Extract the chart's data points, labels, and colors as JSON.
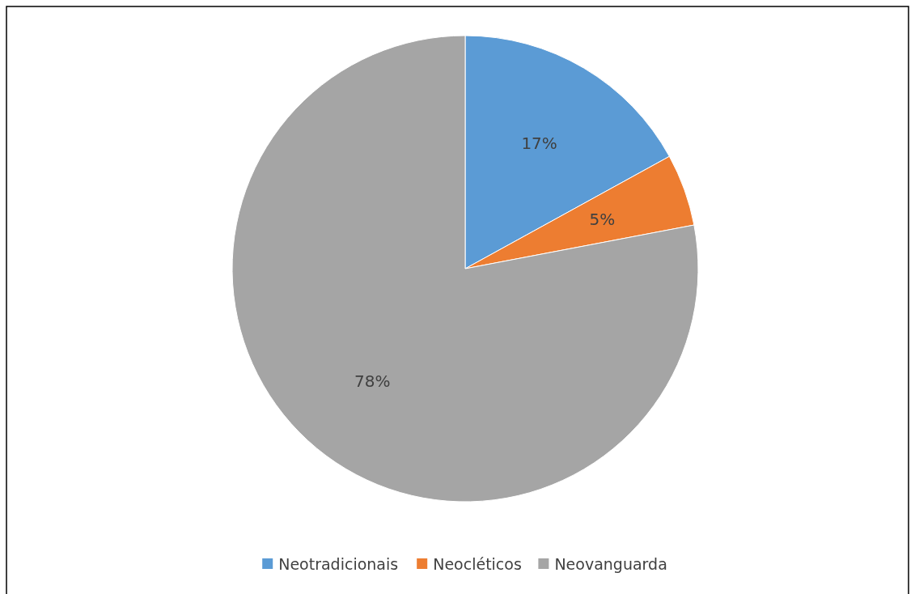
{
  "chart_data": {
    "type": "pie",
    "categories": [
      "Neotradicionais",
      "Neocléticos",
      "Neovanguarda"
    ],
    "values": [
      17,
      5,
      78
    ],
    "colors": [
      "#5b9bd5",
      "#ed7d31",
      "#a5a5a5"
    ],
    "value_labels": [
      "17%",
      "5%",
      "78%"
    ],
    "legend": "bottom"
  }
}
